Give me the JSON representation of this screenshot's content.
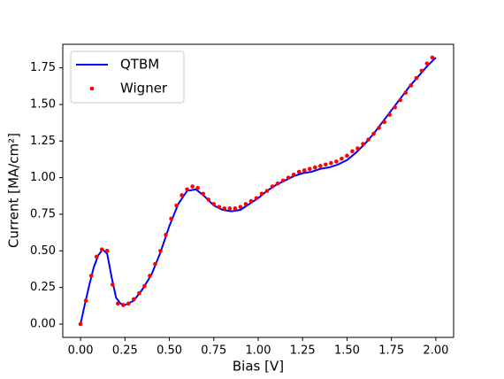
{
  "chart_data": {
    "type": "line",
    "xlabel": "Bias [V]",
    "ylabel": "Current [MA/cm²]",
    "xlim": [
      -0.1,
      2.1
    ],
    "ylim": [
      -0.091,
      1.911
    ],
    "xticks": [
      {
        "value": 0,
        "label": "0.00"
      },
      0.25,
      {
        "value": 0.5,
        "label": "0.50"
      },
      0.75,
      {
        "value": 1,
        "label": "1.00"
      },
      1.25,
      {
        "value": 1.5,
        "label": "1.50"
      },
      1.75,
      {
        "value": 2,
        "label": "2.00"
      }
    ],
    "yticks": [
      {
        "value": 0,
        "label": "0.00"
      },
      0.25,
      {
        "value": 0.5,
        "label": "0.50"
      },
      0.75,
      {
        "value": 1,
        "label": "1.00"
      },
      1.25,
      {
        "value": 1.5,
        "label": "1.50"
      },
      1.75
    ],
    "legend": "upper left",
    "series": [
      {
        "name": "QTBM",
        "color": "#0000ff",
        "style": "line",
        "x": [
          0,
          0.025,
          0.05,
          0.075,
          0.1,
          0.125,
          0.15,
          0.175,
          0.2,
          0.225,
          0.25,
          0.3,
          0.35,
          0.4,
          0.45,
          0.5,
          0.55,
          0.6,
          0.65,
          0.7,
          0.75,
          0.8,
          0.85,
          0.9,
          0.95,
          1.0,
          1.05,
          1.1,
          1.15,
          1.2,
          1.25,
          1.3,
          1.35,
          1.4,
          1.45,
          1.5,
          1.55,
          1.6,
          1.65,
          1.7,
          1.75,
          1.8,
          1.85,
          1.9,
          1.95,
          2.0
        ],
        "values": [
          0,
          0.14,
          0.27,
          0.39,
          0.47,
          0.51,
          0.48,
          0.32,
          0.18,
          0.14,
          0.13,
          0.16,
          0.24,
          0.34,
          0.49,
          0.67,
          0.82,
          0.91,
          0.92,
          0.87,
          0.81,
          0.78,
          0.77,
          0.78,
          0.82,
          0.86,
          0.91,
          0.95,
          0.98,
          1.01,
          1.03,
          1.04,
          1.06,
          1.07,
          1.09,
          1.12,
          1.17,
          1.23,
          1.3,
          1.38,
          1.46,
          1.54,
          1.62,
          1.69,
          1.76,
          1.82
        ]
      },
      {
        "name": "Wigner",
        "color": "#ff0000",
        "style": "marker",
        "x": [
          0,
          0.03,
          0.06,
          0.09,
          0.12,
          0.15,
          0.18,
          0.21,
          0.24,
          0.27,
          0.3,
          0.33,
          0.36,
          0.39,
          0.42,
          0.45,
          0.48,
          0.51,
          0.54,
          0.57,
          0.6,
          0.63,
          0.66,
          0.69,
          0.72,
          0.75,
          0.78,
          0.81,
          0.84,
          0.87,
          0.9,
          0.93,
          0.96,
          0.99,
          1.02,
          1.05,
          1.08,
          1.11,
          1.14,
          1.17,
          1.2,
          1.23,
          1.26,
          1.29,
          1.32,
          1.35,
          1.38,
          1.41,
          1.44,
          1.47,
          1.5,
          1.53,
          1.56,
          1.59,
          1.62,
          1.65,
          1.68,
          1.71,
          1.74,
          1.77,
          1.8,
          1.83,
          1.86,
          1.89,
          1.92,
          1.95,
          1.98
        ],
        "values": [
          0,
          0.16,
          0.33,
          0.46,
          0.51,
          0.5,
          0.27,
          0.14,
          0.13,
          0.14,
          0.17,
          0.21,
          0.26,
          0.33,
          0.41,
          0.5,
          0.61,
          0.72,
          0.81,
          0.88,
          0.92,
          0.94,
          0.93,
          0.89,
          0.85,
          0.82,
          0.8,
          0.79,
          0.79,
          0.79,
          0.8,
          0.82,
          0.84,
          0.86,
          0.89,
          0.91,
          0.94,
          0.96,
          0.98,
          1.0,
          1.02,
          1.04,
          1.05,
          1.06,
          1.07,
          1.08,
          1.09,
          1.1,
          1.11,
          1.13,
          1.15,
          1.18,
          1.2,
          1.23,
          1.26,
          1.3,
          1.34,
          1.38,
          1.43,
          1.48,
          1.53,
          1.58,
          1.63,
          1.68,
          1.73,
          1.78,
          1.82
        ]
      }
    ]
  }
}
